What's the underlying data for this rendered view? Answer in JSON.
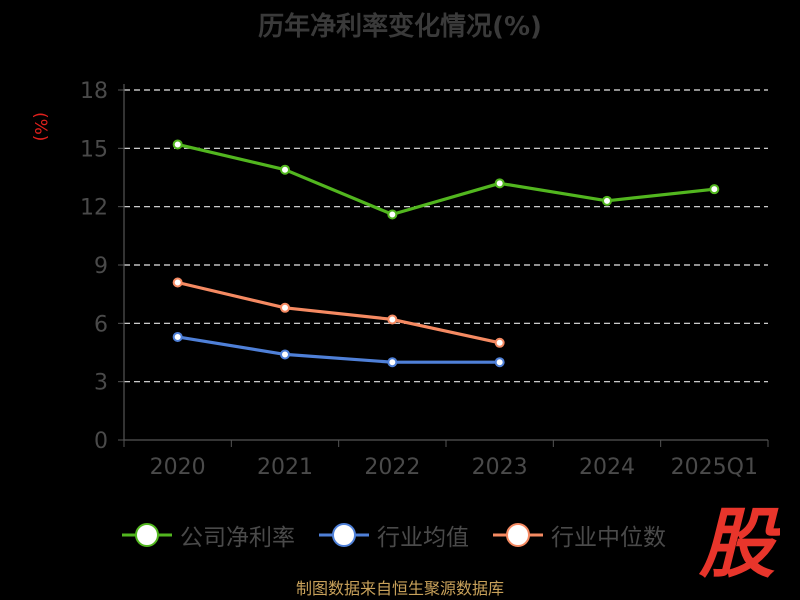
{
  "chart_data": {
    "type": "line",
    "title": "历年净利率变化情况(%)",
    "ylabel": "(%)",
    "xlabel": "",
    "categories": [
      "2020",
      "2021",
      "2022",
      "2023",
      "2024",
      "2025Q1"
    ],
    "ylim": [
      0,
      18
    ],
    "yticks": [
      0,
      3,
      6,
      9,
      12,
      15,
      18
    ],
    "grid": true,
    "legend_position": "bottom",
    "series": [
      {
        "name": "公司净利率",
        "color": "#52b61f",
        "values": [
          15.2,
          13.9,
          11.6,
          13.2,
          12.3,
          12.9
        ]
      },
      {
        "name": "行业均值",
        "color": "#4f80d8",
        "values": [
          5.3,
          4.4,
          4.0,
          4.0,
          null,
          null
        ]
      },
      {
        "name": "行业中位数",
        "color": "#f58a62",
        "values": [
          8.1,
          6.8,
          6.2,
          5.0,
          null,
          null
        ]
      }
    ]
  },
  "logo_text": "股",
  "logo_color": "#e8352b",
  "source": "制图数据来自恒生聚源数据库"
}
